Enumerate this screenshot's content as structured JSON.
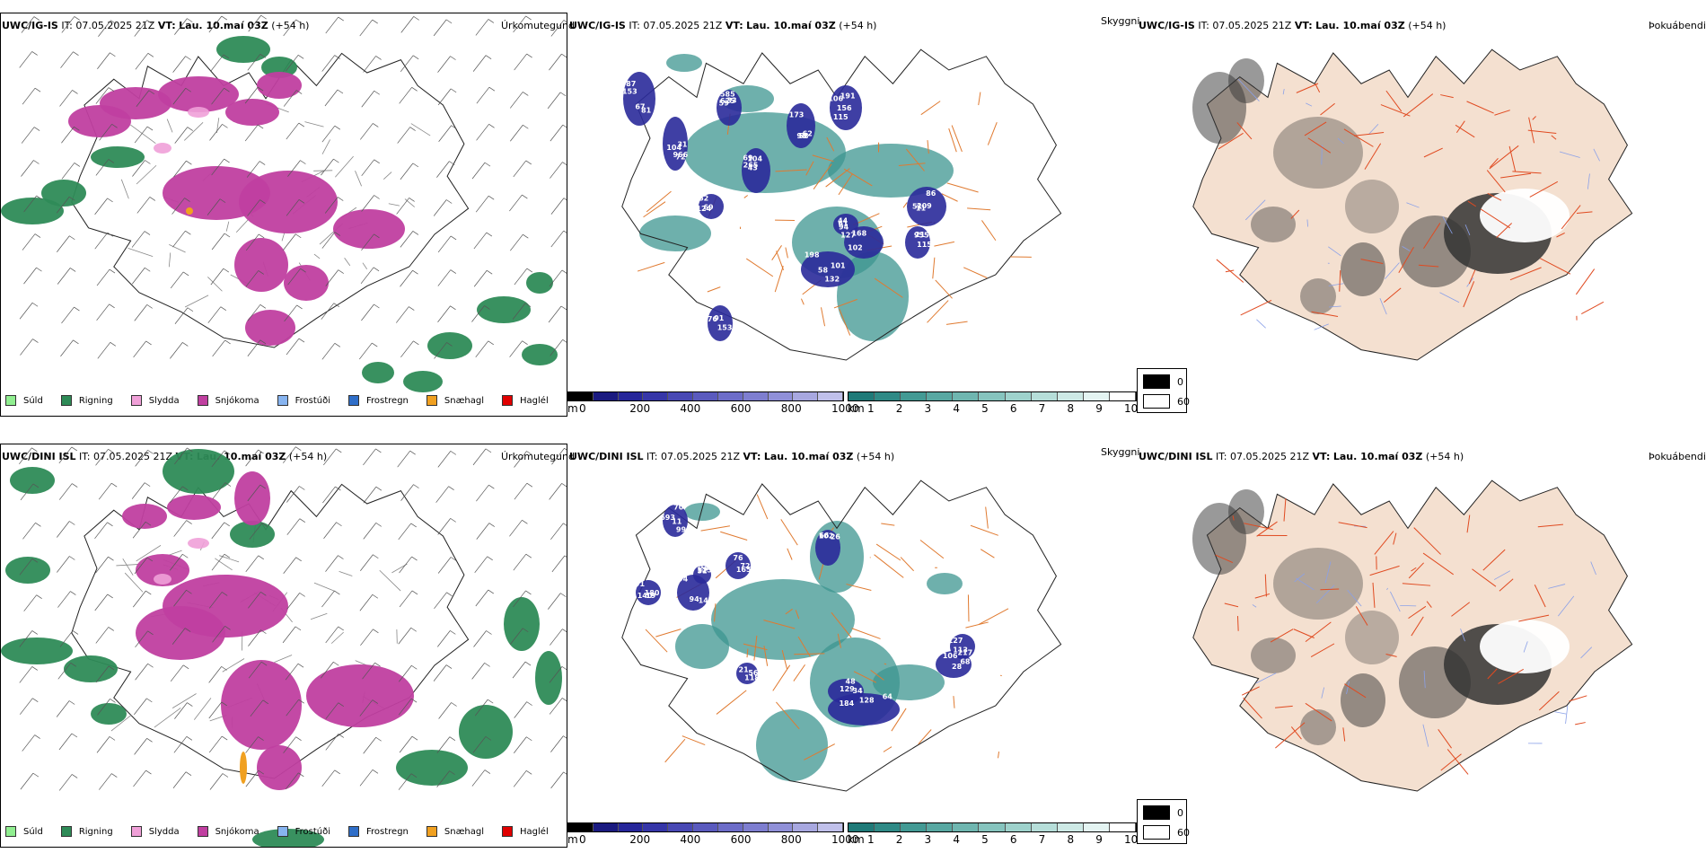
{
  "rows": [
    {
      "model": "UWC/IG-IS",
      "it_label": "IT:",
      "it_value": "07.05.2025 21Z",
      "vt_label": "VT:",
      "vt_value": "Lau. 10.maí 03Z",
      "lead": "(+54 h)",
      "panel_titles": [
        "Úrkomutegund",
        "Skyggni",
        "Þokuábendi"
      ],
      "cloud_labels": [
        "87",
        "31",
        "59",
        "43",
        "58",
        "115",
        "86",
        "132",
        "168",
        "44",
        "62",
        "153",
        "115",
        "67",
        "966",
        "625",
        "69",
        "62",
        "156",
        "11",
        "198",
        "102",
        "61",
        "124",
        "76",
        "21",
        "153",
        "104",
        "585",
        "104",
        "98",
        "106",
        "209",
        "101",
        "127",
        "94",
        "69",
        "91",
        "955",
        "81",
        "72",
        "33",
        "265",
        "173",
        "191",
        "51",
        "58"
      ]
    },
    {
      "model": "UWC/DINI ISL",
      "it_label": "IT:",
      "it_value": "07.05.2025 21Z",
      "vt_label": "VT:",
      "vt_value": "Lau. 10.maí 03Z",
      "lead": "(+54 h)",
      "panel_titles": [
        "Úrkomutegund",
        "Skyggni",
        "Þokuábendi"
      ],
      "cloud_labels": [
        "70",
        "91",
        "94",
        "76",
        "26",
        "118",
        "128",
        "48",
        "68",
        "127",
        "248",
        "99",
        "19",
        "94",
        "165",
        "66",
        "21",
        "184",
        "129",
        "106",
        "113",
        "125",
        "693",
        "180",
        "141",
        "72",
        "102",
        "56",
        "64",
        "34",
        "28",
        "217",
        "52",
        "11",
        "140"
      ]
    }
  ],
  "precip_legend": [
    {
      "label": "Súld",
      "color": "#90ee90"
    },
    {
      "label": "Rigning",
      "color": "#2e8b57"
    },
    {
      "label": "Slydda",
      "color": "#f0a0d8"
    },
    {
      "label": "Snjókoma",
      "color": "#c03fa0"
    },
    {
      "label": "Frostúði",
      "color": "#87b4f0"
    },
    {
      "label": "Frostregn",
      "color": "#2f6ec8"
    },
    {
      "label": "Snæhagl",
      "color": "#f0a020"
    },
    {
      "label": "Haglél",
      "color": "#e00000"
    }
  ],
  "cloud_colorbar": {
    "unit": "m",
    "ticks": [
      "0",
      "200",
      "400",
      "600",
      "800",
      "1000"
    ],
    "colors": [
      "#000000",
      "#1a1a80",
      "#26269a",
      "#3636a8",
      "#4848b4",
      "#5a5abe",
      "#6c6cc8",
      "#7e7ed0",
      "#9090d8",
      "#a8a8e0",
      "#c0c0ea"
    ]
  },
  "vis_colorbar": {
    "unit": "km",
    "ticks": [
      "1",
      "2",
      "3",
      "4",
      "5",
      "6",
      "7",
      "8",
      "9",
      "10"
    ],
    "colors": [
      "#1f7a78",
      "#2f8a86",
      "#439a94",
      "#58a8a2",
      "#6fb6b0",
      "#86c4be",
      "#9ed2cc",
      "#b6ded9",
      "#cde9e5",
      "#e4f4f2",
      "#ffffff"
    ]
  },
  "fog_legend": [
    {
      "label": "0",
      "color": "#000000"
    },
    {
      "label": "60",
      "color": "#ffffff"
    }
  ],
  "colors": {
    "rain": "#2e8b57",
    "snow": "#c03fa0",
    "sleet": "#f0a0d8",
    "ice_pellets": "#f0a020",
    "cloud_base": "#2a2a9a",
    "visibility": "#3d9690",
    "road": "#e07a30",
    "fog_land": "#f4e0d0",
    "fog_road": "#e04a20",
    "river": "#8aa0e8"
  }
}
